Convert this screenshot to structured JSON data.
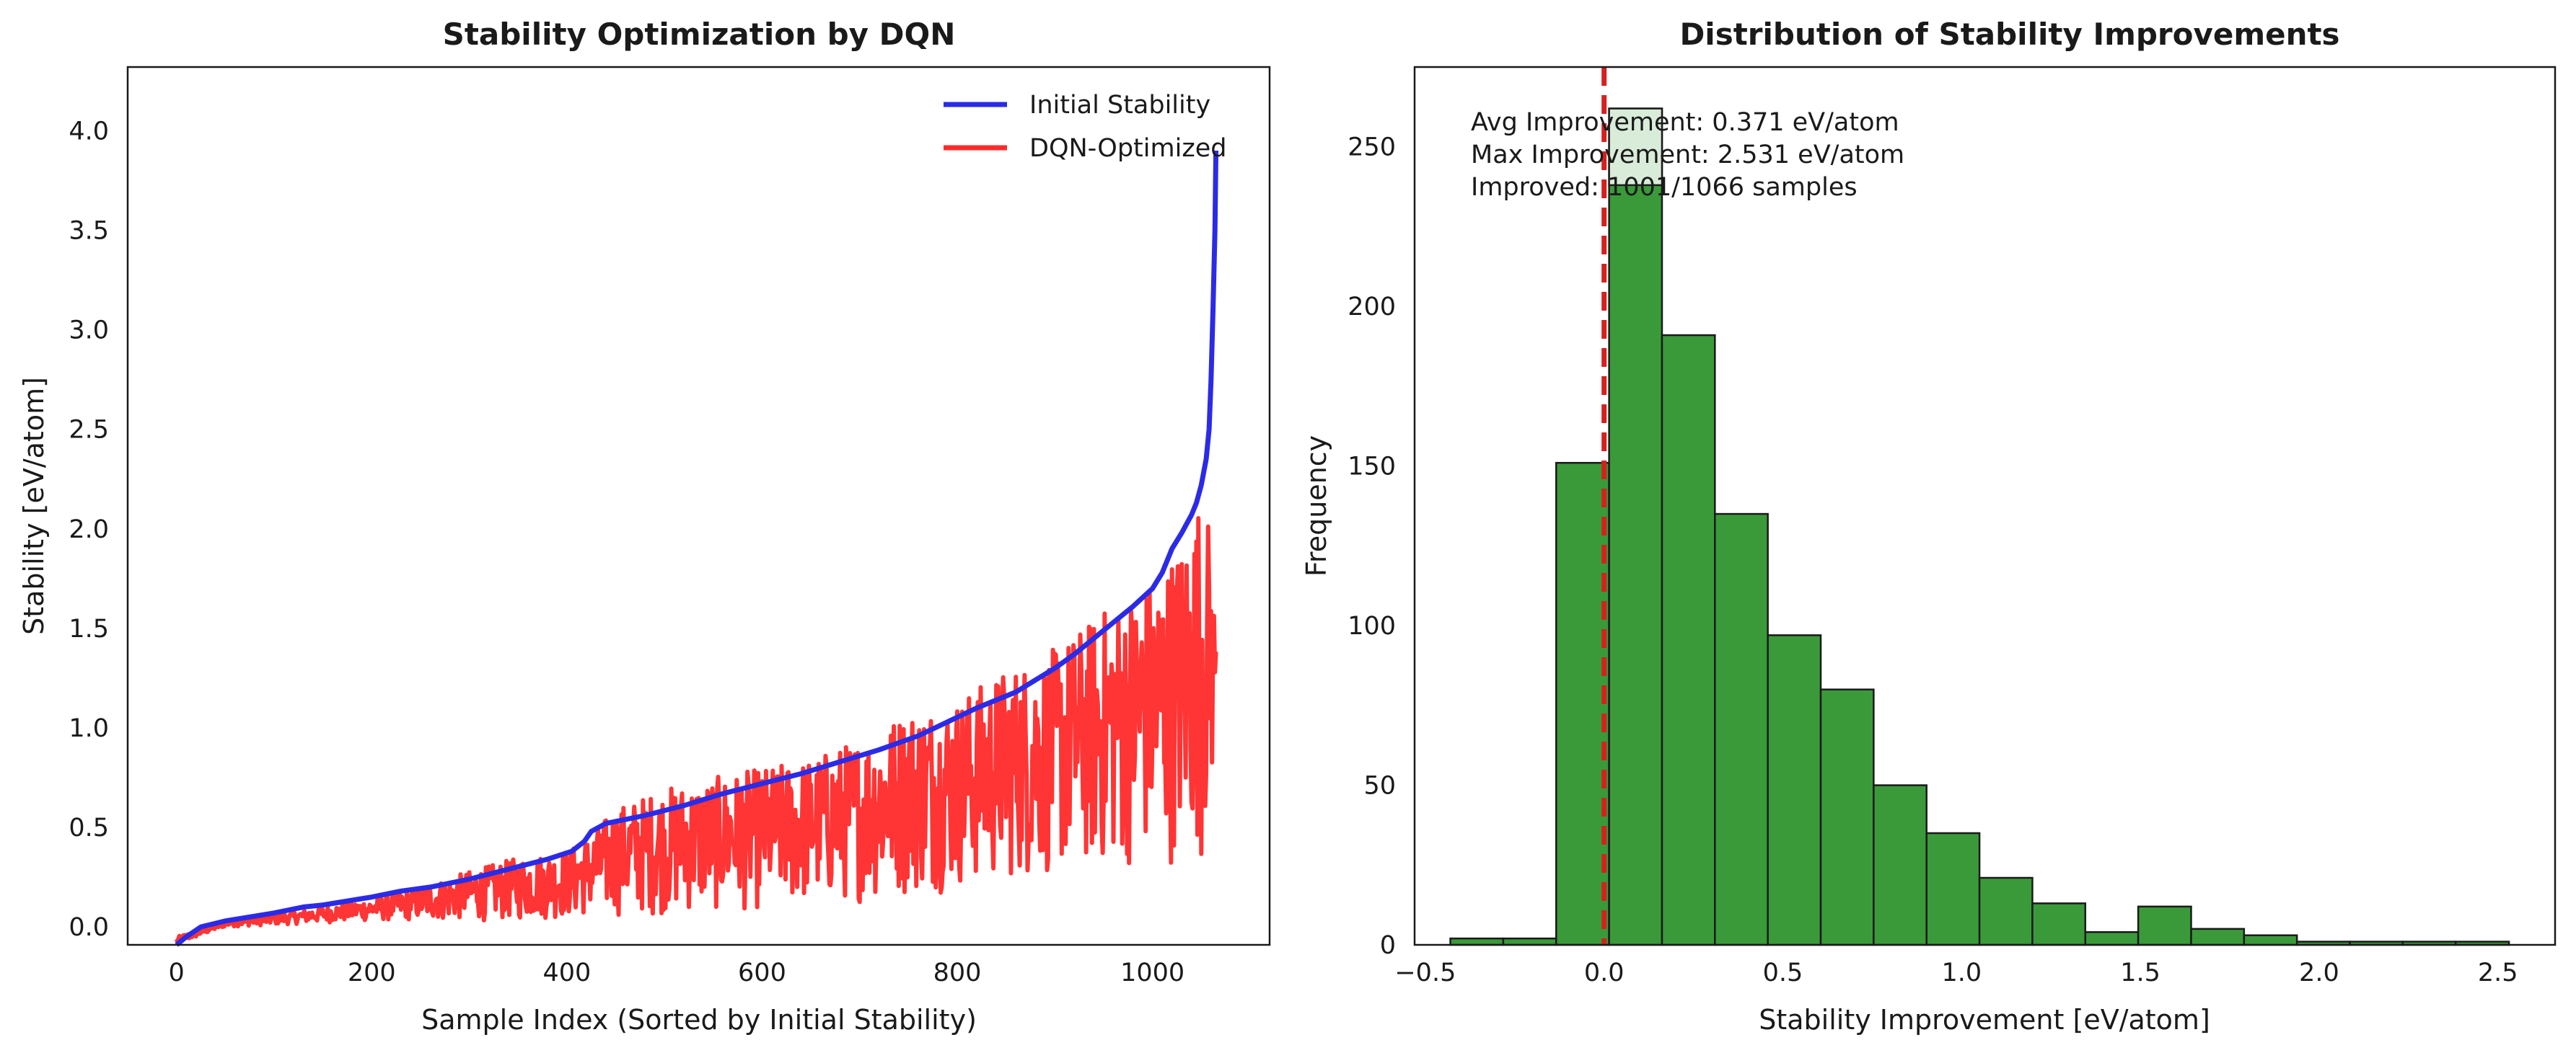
{
  "chart_data": [
    {
      "type": "line",
      "title": "Stability Optimization by DQN",
      "xlabel": "Sample Index (Sorted by Initial Stability)",
      "ylabel": "Stability [eV/atom]",
      "xlim": [
        -50,
        1120
      ],
      "ylim": [
        -0.09,
        4.32
      ],
      "xticks": [
        0,
        200,
        400,
        600,
        800,
        1000
      ],
      "xtick_labels": [
        "0",
        "200",
        "400",
        "600",
        "800",
        "1000"
      ],
      "yticks": [
        0.0,
        0.5,
        1.0,
        1.5,
        2.0,
        2.5,
        3.0,
        3.5,
        4.0
      ],
      "ytick_labels": [
        "0.0",
        "0.5",
        "1.0",
        "1.5",
        "2.0",
        "2.5",
        "3.0",
        "3.5",
        "4.0"
      ],
      "grid": false,
      "legend_position": "top-right",
      "series": [
        {
          "name": "Initial Stability",
          "color": "#2b2be6",
          "x": [
            0,
            10,
            25,
            50,
            100,
            130,
            150,
            200,
            230,
            260,
            300,
            340,
            380,
            405,
            418,
            425,
            440,
            480,
            520,
            560,
            600,
            640,
            680,
            720,
            760,
            790,
            820,
            840,
            860,
            880,
            900,
            920,
            940,
            960,
            980,
            1000,
            1010,
            1020,
            1030,
            1040,
            1045,
            1050,
            1055,
            1058,
            1060,
            1062,
            1064,
            1065
          ],
          "y": [
            -0.09,
            -0.05,
            0.0,
            0.03,
            0.07,
            0.1,
            0.11,
            0.15,
            0.18,
            0.2,
            0.24,
            0.29,
            0.34,
            0.38,
            0.43,
            0.48,
            0.52,
            0.56,
            0.61,
            0.67,
            0.72,
            0.77,
            0.83,
            0.89,
            0.96,
            1.03,
            1.1,
            1.14,
            1.18,
            1.24,
            1.3,
            1.37,
            1.45,
            1.53,
            1.61,
            1.7,
            1.78,
            1.9,
            1.98,
            2.07,
            2.13,
            2.22,
            2.35,
            2.5,
            2.75,
            3.1,
            3.5,
            3.9
          ]
        },
        {
          "name": "DQN-Optimized",
          "color": "#ff2a2a",
          "samples": 1066,
          "envelope_x": [
            0,
            50,
            100,
            150,
            200,
            250,
            300,
            350,
            400,
            420,
            450,
            500,
            550,
            600,
            650,
            700,
            750,
            800,
            850,
            900,
            950,
            1000,
            1030,
            1050,
            1060,
            1065
          ],
          "envelope_lower": [
            -0.09,
            0.0,
            0.01,
            0.02,
            0.03,
            0.03,
            0.03,
            0.03,
            0.04,
            0.05,
            0.05,
            0.06,
            0.07,
            0.08,
            0.1,
            0.12,
            0.15,
            0.18,
            0.22,
            0.25,
            0.28,
            0.3,
            0.32,
            0.35,
            0.5,
            1.3
          ],
          "envelope_upper": [
            -0.05,
            0.03,
            0.06,
            0.1,
            0.14,
            0.2,
            0.28,
            0.35,
            0.38,
            0.45,
            0.6,
            0.7,
            0.75,
            0.8,
            0.85,
            0.95,
            1.1,
            1.15,
            1.3,
            1.4,
            1.6,
            1.75,
            1.95,
            2.2,
            2.0,
            1.4
          ]
        }
      ]
    },
    {
      "type": "bar",
      "title": "Distribution of Stability Improvements",
      "xlabel": "Stability Improvement [eV/atom]",
      "ylabel": "Frequency",
      "xlim": [
        -0.53,
        2.66
      ],
      "ylim": [
        0,
        275
      ],
      "xticks": [
        -0.5,
        0.0,
        0.5,
        1.0,
        1.5,
        2.0,
        2.5
      ],
      "xtick_labels": [
        "−0.5",
        "0.0",
        "0.5",
        "1.0",
        "1.5",
        "2.0",
        "2.5"
      ],
      "yticks": [
        0,
        50,
        100,
        150,
        200,
        250
      ],
      "ytick_labels": [
        "0",
        "50",
        "100",
        "150",
        "200",
        "250"
      ],
      "grid": false,
      "bar_color": "#3a9a3a",
      "bar_edge_color": "#1a1a1a",
      "bin_edges": [
        -0.43,
        -0.282,
        -0.134,
        0.014,
        0.162,
        0.31,
        0.458,
        0.606,
        0.754,
        0.902,
        1.05,
        1.198,
        1.346,
        1.494,
        1.642,
        1.79,
        1.938,
        2.086,
        2.234,
        2.382,
        2.531
      ],
      "counts": [
        2,
        2,
        151,
        262,
        191,
        135,
        97,
        80,
        50,
        35,
        21,
        13,
        4,
        12,
        5,
        3,
        1,
        1,
        1,
        1
      ],
      "reference_line": {
        "x": 0.0,
        "color": "#d62020",
        "style": "dashed"
      },
      "annotations": [
        "Avg Improvement: 0.371 eV/atom",
        "Max Improvement: 2.531 eV/atom",
        "Improved: 1001/1066 samples"
      ]
    }
  ]
}
